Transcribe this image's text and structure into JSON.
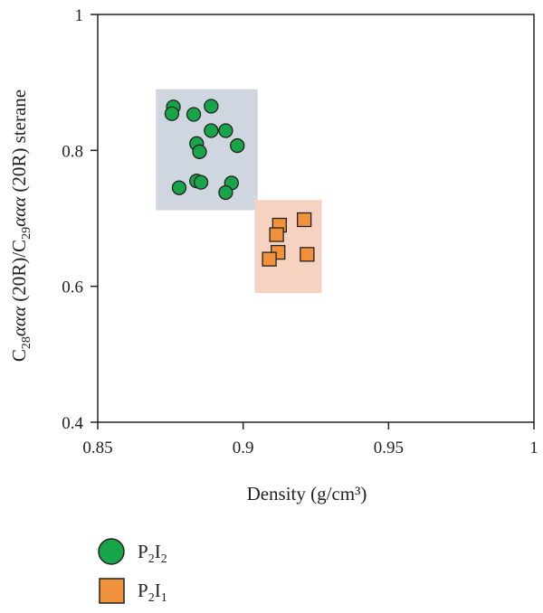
{
  "chart_data": {
    "type": "scatter",
    "xlabel": "Density (g/cm³)",
    "ylabel_parts": {
      "c1": "C",
      "c1_sub": "28",
      "greek1": "ααα",
      "mid": " (20R)/C",
      "c2_sub": "29",
      "greek2": "ααα",
      "tail": " (20R) sterane"
    },
    "xlim": [
      0.85,
      1
    ],
    "ylim": [
      0.4,
      1
    ],
    "xticks": [
      {
        "value": 0.85,
        "label": "0.85"
      },
      {
        "value": 0.9,
        "label": "0.9"
      },
      {
        "value": 0.95,
        "label": "0.95"
      },
      {
        "value": 1,
        "label": "1"
      }
    ],
    "yticks": [
      {
        "value": 0.4,
        "label": "0.4"
      },
      {
        "value": 0.6,
        "label": "0.6"
      },
      {
        "value": 0.8,
        "label": "0.8"
      },
      {
        "value": 1,
        "label": "1"
      }
    ],
    "grid": false,
    "legend_position": "bottom-left",
    "regions": [
      {
        "series": "P2I2",
        "x": [
          0.87,
          0.905
        ],
        "y": [
          0.712,
          0.89
        ],
        "color": "#cfd6df"
      },
      {
        "series": "P2I1",
        "x": [
          0.904,
          0.927
        ],
        "y": [
          0.59,
          0.727
        ],
        "color": "#f6d3c0"
      }
    ],
    "series": [
      {
        "id": "P2I2",
        "label_base": "P",
        "label_sub1": "2",
        "label_mid": "I",
        "label_sub2": "2",
        "marker": "circle",
        "color": "#18a54a",
        "points": [
          {
            "x": 0.876,
            "y": 0.864
          },
          {
            "x": 0.8755,
            "y": 0.854
          },
          {
            "x": 0.883,
            "y": 0.853
          },
          {
            "x": 0.889,
            "y": 0.865
          },
          {
            "x": 0.889,
            "y": 0.829
          },
          {
            "x": 0.894,
            "y": 0.829
          },
          {
            "x": 0.884,
            "y": 0.81
          },
          {
            "x": 0.885,
            "y": 0.798
          },
          {
            "x": 0.898,
            "y": 0.807
          },
          {
            "x": 0.878,
            "y": 0.745
          },
          {
            "x": 0.884,
            "y": 0.755
          },
          {
            "x": 0.8855,
            "y": 0.753
          },
          {
            "x": 0.896,
            "y": 0.752
          },
          {
            "x": 0.894,
            "y": 0.738
          }
        ]
      },
      {
        "id": "P2I1",
        "label_base": "P",
        "label_sub1": "2",
        "label_mid": "I",
        "label_sub2": "1",
        "marker": "square",
        "color": "#f0923c",
        "points": [
          {
            "x": 0.9125,
            "y": 0.69
          },
          {
            "x": 0.9115,
            "y": 0.676
          },
          {
            "x": 0.921,
            "y": 0.698
          },
          {
            "x": 0.912,
            "y": 0.65
          },
          {
            "x": 0.909,
            "y": 0.64
          },
          {
            "x": 0.922,
            "y": 0.647
          }
        ]
      }
    ]
  }
}
